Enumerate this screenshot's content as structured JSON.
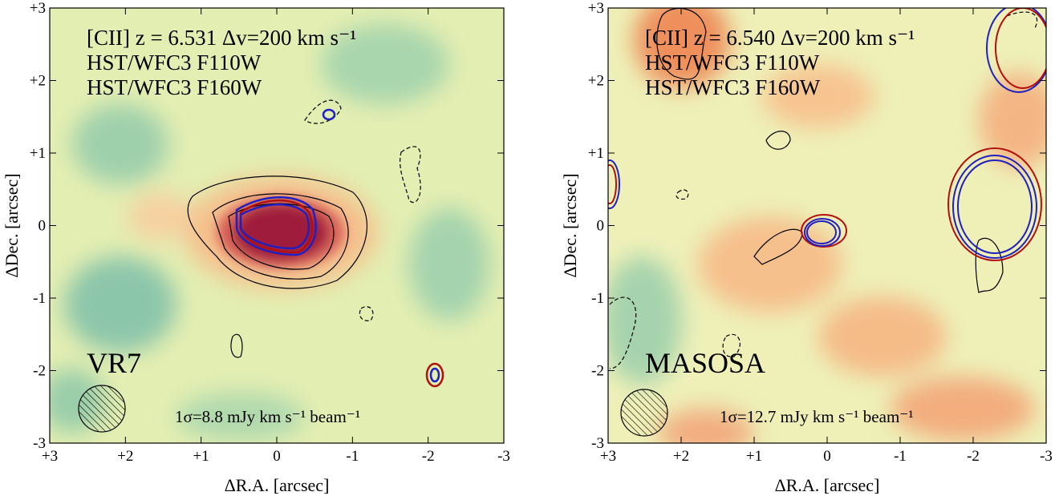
{
  "chart_data": [
    {
      "type": "image",
      "xlabel": "ΔR.A. [arcsec]",
      "ylabel": "ΔDec. [arcsec]",
      "xlim": [
        3,
        -3
      ],
      "ylim": [
        -3,
        3
      ],
      "xticks": [
        {
          "value": 3,
          "label": "+3"
        },
        {
          "value": 2,
          "label": "+2"
        },
        {
          "value": 1,
          "label": "+1"
        },
        0,
        -1,
        -2,
        -3
      ],
      "yticks": [
        {
          "value": -3,
          "label": "-3"
        },
        {
          "value": -2,
          "label": "-2"
        },
        {
          "value": -1,
          "label": "-1"
        },
        0,
        {
          "value": 1,
          "label": "+1"
        },
        {
          "value": 2,
          "label": "+2"
        },
        {
          "value": 3,
          "label": "+3"
        }
      ],
      "annotations": [
        {
          "text": "[CII] z = 6.531 Δv=200 km s⁻¹",
          "color": "#000000"
        },
        {
          "text": "HST/WFC3 F110W",
          "color": "#1010b0"
        },
        {
          "text": "HST/WFC3 F160W",
          "color": "#a01010"
        }
      ],
      "name": "VR7",
      "noise": "1σ=8.8 mJy km s⁻¹ beam⁻¹"
    },
    {
      "type": "image",
      "xlabel": "ΔR.A. [arcsec]",
      "ylabel": "ΔDec. [arcsec]",
      "xlim": [
        3,
        -3
      ],
      "ylim": [
        -3,
        3
      ],
      "xticks": [
        {
          "value": 3,
          "label": "+3"
        },
        {
          "value": 2,
          "label": "+2"
        },
        {
          "value": 1,
          "label": "+1"
        },
        0,
        -1,
        -2,
        -3
      ],
      "yticks": [
        {
          "value": -3,
          "label": "-3"
        },
        {
          "value": -2,
          "label": "-2"
        },
        {
          "value": -1,
          "label": "-1"
        },
        0,
        {
          "value": 1,
          "label": "+1"
        },
        {
          "value": 2,
          "label": "+2"
        },
        {
          "value": 3,
          "label": "+3"
        }
      ],
      "annotations": [
        {
          "text": "[CII] z = 6.540 Δv=200 km s⁻¹",
          "color": "#000000"
        },
        {
          "text": "HST/WFC3 F110W",
          "color": "#1010b0"
        },
        {
          "text": "HST/WFC3 F160W",
          "color": "#a01010"
        }
      ],
      "name": "MASOSA",
      "noise": "1σ=12.7 mJy km s⁻¹ beam⁻¹"
    }
  ]
}
